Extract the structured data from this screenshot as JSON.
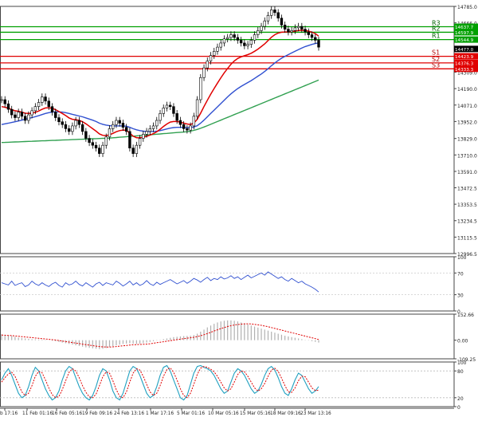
{
  "chart_data": {
    "type": "line",
    "panels": {
      "price": {
        "ylim": [
          12996.5,
          14785.0
        ],
        "ticks": [
          "14785.0",
          "14666.0",
          "14547.0",
          "14428.0",
          "14309.0",
          "14190.0",
          "14071.0",
          "13952.0",
          "13829.0",
          "13710.0",
          "13591.0",
          "13472.5",
          "13353.5",
          "13234.5",
          "13115.5",
          "12996.5"
        ],
        "levels": [
          {
            "label": "R3",
            "tag": "14637.7",
            "value": 14637.7,
            "color": "#00a000"
          },
          {
            "label": "R2",
            "tag": "14597.9",
            "value": 14597.9,
            "color": "#00a000"
          },
          {
            "label": "R1",
            "tag": "14544.9",
            "value": 14544.9,
            "color": "#00a000"
          },
          {
            "label": "",
            "tag": "14477.0",
            "value": 14477.0,
            "color": "#000000"
          },
          {
            "label": "S1",
            "tag": "14423.9",
            "value": 14423.9,
            "color": "#e00000"
          },
          {
            "label": "S2",
            "tag": "14376.3",
            "value": 14376.3,
            "color": "#e00000"
          },
          {
            "label": "S3",
            "tag": "14333.3",
            "value": 14333.3,
            "color": "#e00000"
          }
        ],
        "close": [
          14110,
          14080,
          14040,
          14000,
          13980,
          14020,
          13990,
          13960,
          14000,
          14030,
          14060,
          14090,
          14130,
          14100,
          14060,
          14020,
          13980,
          13950,
          13930,
          13900,
          13880,
          13920,
          13960,
          13930,
          13880,
          13830,
          13800,
          13780,
          13760,
          13720,
          13780,
          13840,
          13900,
          13930,
          13960,
          13940,
          13910,
          13880,
          13760,
          13720,
          13780,
          13830,
          13860,
          13880,
          13900,
          13920,
          13960,
          14010,
          14050,
          14070,
          14060,
          14010,
          13960,
          13930,
          13900,
          13890,
          13920,
          13990,
          14110,
          14270,
          14340,
          14390,
          14430,
          14460,
          14490,
          14520,
          14550,
          14560,
          14580,
          14560,
          14540,
          14520,
          14500,
          14510,
          14540,
          14580,
          14610,
          14640,
          14680,
          14720,
          14760,
          14740,
          14700,
          14650,
          14620,
          14600,
          14610,
          14630,
          14640,
          14620,
          14600,
          14580,
          14560,
          14540,
          14490
        ],
        "ema_fast": [
          14060,
          14055,
          14048,
          14038,
          14030,
          14026,
          14020,
          14012,
          14010,
          14012,
          14018,
          14028,
          14040,
          14050,
          14052,
          14048,
          14038,
          14024,
          14010,
          13995,
          13978,
          13968,
          13965,
          13960,
          13950,
          13935,
          13918,
          13900,
          13882,
          13862,
          13852,
          13850,
          13856,
          13866,
          13878,
          13886,
          13890,
          13888,
          13868,
          13846,
          13835,
          13834,
          13838,
          13845,
          13854,
          13864,
          13878,
          13896,
          13916,
          13934,
          13948,
          13952,
          13952,
          13948,
          13940,
          13934,
          13930,
          13940,
          13968,
          14012,
          14060,
          14106,
          14150,
          14190,
          14230,
          14268,
          14304,
          14336,
          14366,
          14390,
          14408,
          14420,
          14428,
          14436,
          14446,
          14460,
          14476,
          14494,
          14514,
          14538,
          14562,
          14580,
          14592,
          14598,
          14600,
          14600,
          14602,
          14606,
          14610,
          14612,
          14610,
          14606,
          14598,
          14588,
          14570
        ],
        "ema_slow": [
          13930,
          13935,
          13940,
          13945,
          13950,
          13956,
          13962,
          13968,
          13974,
          13980,
          13987,
          13994,
          14002,
          14010,
          14016,
          14020,
          14022,
          14022,
          14020,
          14016,
          14010,
          14004,
          13998,
          13992,
          13986,
          13978,
          13970,
          13962,
          13952,
          13940,
          13932,
          13926,
          13922,
          13920,
          13920,
          13920,
          13920,
          13918,
          13910,
          13900,
          13892,
          13886,
          13882,
          13880,
          13880,
          13880,
          13882,
          13886,
          13892,
          13898,
          13904,
          13908,
          13910,
          13910,
          13910,
          13908,
          13908,
          13912,
          13922,
          13940,
          13962,
          13986,
          14010,
          14034,
          14058,
          14082,
          14106,
          14130,
          14152,
          14172,
          14190,
          14206,
          14220,
          14234,
          14248,
          14264,
          14280,
          14296,
          14314,
          14334,
          14356,
          14376,
          14394,
          14410,
          14424,
          14436,
          14448,
          14460,
          14472,
          14484,
          14494,
          14502,
          14510,
          14516,
          14520
        ],
        "ma_long": [
          13800,
          13801,
          13802,
          13803,
          13804,
          13805,
          13806,
          13807,
          13808,
          13809,
          13810,
          13811,
          13812,
          13813,
          13814,
          13815,
          13816,
          13817,
          13818,
          13819,
          13820,
          13821,
          13822,
          13823,
          13824,
          13825,
          13826,
          13827,
          13828,
          13829,
          13830,
          13831,
          13832,
          13834,
          13836,
          13838,
          13840,
          13842,
          13844,
          13846,
          13848,
          13850,
          13852,
          13854,
          13856,
          13858,
          13860,
          13862,
          13864,
          13866,
          13868,
          13870,
          13872,
          13874,
          13876,
          13878,
          13882,
          13888,
          13895,
          13903,
          13912,
          13922,
          13932,
          13942,
          13952,
          13962,
          13972,
          13982,
          13992,
          14002,
          14012,
          14022,
          14032,
          14042,
          14052,
          14062,
          14072,
          14082,
          14092,
          14102,
          14112,
          14122,
          14132,
          14142,
          14152,
          14162,
          14172,
          14182,
          14192,
          14202,
          14212,
          14222,
          14232,
          14242,
          14252
        ]
      },
      "rsi": {
        "ylim": [
          0,
          100
        ],
        "ticks": [
          "100",
          "70",
          "30",
          "0"
        ],
        "values": [
          52,
          50,
          48,
          55,
          47,
          50,
          52,
          45,
          48,
          55,
          50,
          47,
          52,
          48,
          45,
          50,
          53,
          47,
          44,
          52,
          48,
          50,
          55,
          49,
          46,
          52,
          48,
          44,
          50,
          53,
          47,
          52,
          50,
          48,
          55,
          51,
          46,
          50,
          55,
          48,
          52,
          47,
          50,
          56,
          50,
          47,
          53,
          49,
          52,
          55,
          58,
          54,
          50,
          53,
          56,
          51,
          55,
          60,
          57,
          53,
          58,
          62,
          56,
          60,
          58,
          63,
          59,
          61,
          65,
          60,
          63,
          58,
          62,
          66,
          61,
          64,
          67,
          70,
          66,
          72,
          68,
          64,
          60,
          63,
          58,
          55,
          60,
          56,
          52,
          55,
          50,
          47,
          44,
          40,
          35
        ]
      },
      "macd": {
        "ylim": [
          -109.25,
          152.66
        ],
        "ticks": [
          "152.66",
          "0.00",
          "-109.25"
        ],
        "histogram": [
          35,
          30,
          28,
          25,
          20,
          15,
          12,
          10,
          8,
          6,
          5,
          4,
          3,
          2,
          0,
          -3,
          -6,
          -10,
          -14,
          -18,
          -22,
          -26,
          -30,
          -34,
          -38,
          -42,
          -45,
          -48,
          -50,
          -52,
          -50,
          -46,
          -40,
          -35,
          -30,
          -26,
          -22,
          -20,
          -18,
          -20,
          -22,
          -20,
          -17,
          -14,
          -10,
          -6,
          -2,
          2,
          6,
          10,
          14,
          18,
          20,
          22,
          24,
          25,
          26,
          30,
          38,
          50,
          62,
          75,
          86,
          96,
          104,
          110,
          114,
          116,
          116,
          114,
          110,
          104,
          98,
          92,
          86,
          80,
          74,
          68,
          62,
          56,
          50,
          44,
          38,
          32,
          26,
          22,
          18,
          14,
          10,
          6,
          2,
          -2,
          -6,
          -10,
          -14
        ],
        "signal": [
          30,
          29,
          28,
          27,
          25,
          23,
          21,
          19,
          17,
          15,
          13,
          11,
          9,
          7,
          5,
          3,
          1,
          -2,
          -5,
          -8,
          -11,
          -14,
          -17,
          -20,
          -23,
          -26,
          -29,
          -32,
          -35,
          -37,
          -39,
          -40,
          -40,
          -39,
          -37,
          -35,
          -33,
          -31,
          -29,
          -27,
          -26,
          -25,
          -24,
          -23,
          -21,
          -18,
          -15,
          -12,
          -9,
          -6,
          -3,
          0,
          3,
          6,
          9,
          12,
          14,
          17,
          21,
          26,
          32,
          39,
          46,
          54,
          61,
          68,
          74,
          80,
          85,
          89,
          92,
          94,
          96,
          96,
          95,
          93,
          90,
          87,
          83,
          79,
          74,
          69,
          64,
          59,
          54,
          49,
          44,
          39,
          34,
          29,
          24,
          19,
          14,
          9,
          4
        ]
      },
      "stoch": {
        "ylim": [
          0,
          100
        ],
        "ticks": [
          "100",
          "80",
          "20",
          "0"
        ],
        "k": [
          60,
          75,
          85,
          70,
          50,
          30,
          20,
          25,
          45,
          70,
          88,
          80,
          60,
          40,
          25,
          15,
          20,
          35,
          60,
          80,
          90,
          85,
          65,
          45,
          30,
          20,
          15,
          25,
          45,
          70,
          85,
          80,
          60,
          35,
          20,
          15,
          30,
          55,
          80,
          90,
          85,
          70,
          50,
          30,
          20,
          25,
          45,
          70,
          88,
          92,
          80,
          60,
          40,
          20,
          15,
          25,
          50,
          75,
          90,
          92,
          88,
          85,
          80,
          70,
          55,
          40,
          30,
          35,
          55,
          75,
          85,
          80,
          70,
          55,
          40,
          30,
          35,
          50,
          70,
          85,
          90,
          82,
          65,
          45,
          30,
          25,
          40,
          60,
          75,
          70,
          55,
          40,
          30,
          35,
          45
        ],
        "d": [
          55,
          65,
          73,
          77,
          68,
          50,
          33,
          25,
          30,
          47,
          68,
          79,
          76,
          60,
          42,
          27,
          20,
          23,
          38,
          58,
          77,
          85,
          80,
          65,
          47,
          32,
          22,
          20,
          28,
          47,
          67,
          78,
          75,
          58,
          38,
          23,
          20,
          33,
          55,
          75,
          85,
          82,
          68,
          50,
          33,
          25,
          30,
          47,
          68,
          83,
          87,
          77,
          60,
          40,
          25,
          20,
          30,
          50,
          72,
          86,
          90,
          88,
          84,
          78,
          68,
          55,
          42,
          35,
          40,
          55,
          72,
          80,
          78,
          68,
          55,
          42,
          35,
          40,
          52,
          68,
          82,
          86,
          79,
          64,
          47,
          33,
          32,
          42,
          58,
          68,
          67,
          55,
          42,
          36,
          37
        ]
      }
    },
    "x_labels": [
      "b 17:16",
      "11 Feb 01:16",
      "16 Feb 05:16",
      "19 Feb 09:16",
      "24 Feb 13:16",
      "1 Mar 17:16",
      "5 Mar 01:16",
      "10 Mar 05:16",
      "15 Mar 05:16",
      "18 Mar 09:16",
      "23 Mar 13:16"
    ],
    "colors": {
      "price": "#000000",
      "ema_fast": "#e00000",
      "ema_slow": "#3050d0",
      "ma_long": "#30a050",
      "resistance": "#00a000",
      "support": "#e00000",
      "rsi": "#3050d0",
      "macd_hist": "#b0b0b0",
      "macd_signal": "#e00000",
      "stoch_k": "#20a0c0",
      "stoch_d": "#e00000"
    }
  }
}
